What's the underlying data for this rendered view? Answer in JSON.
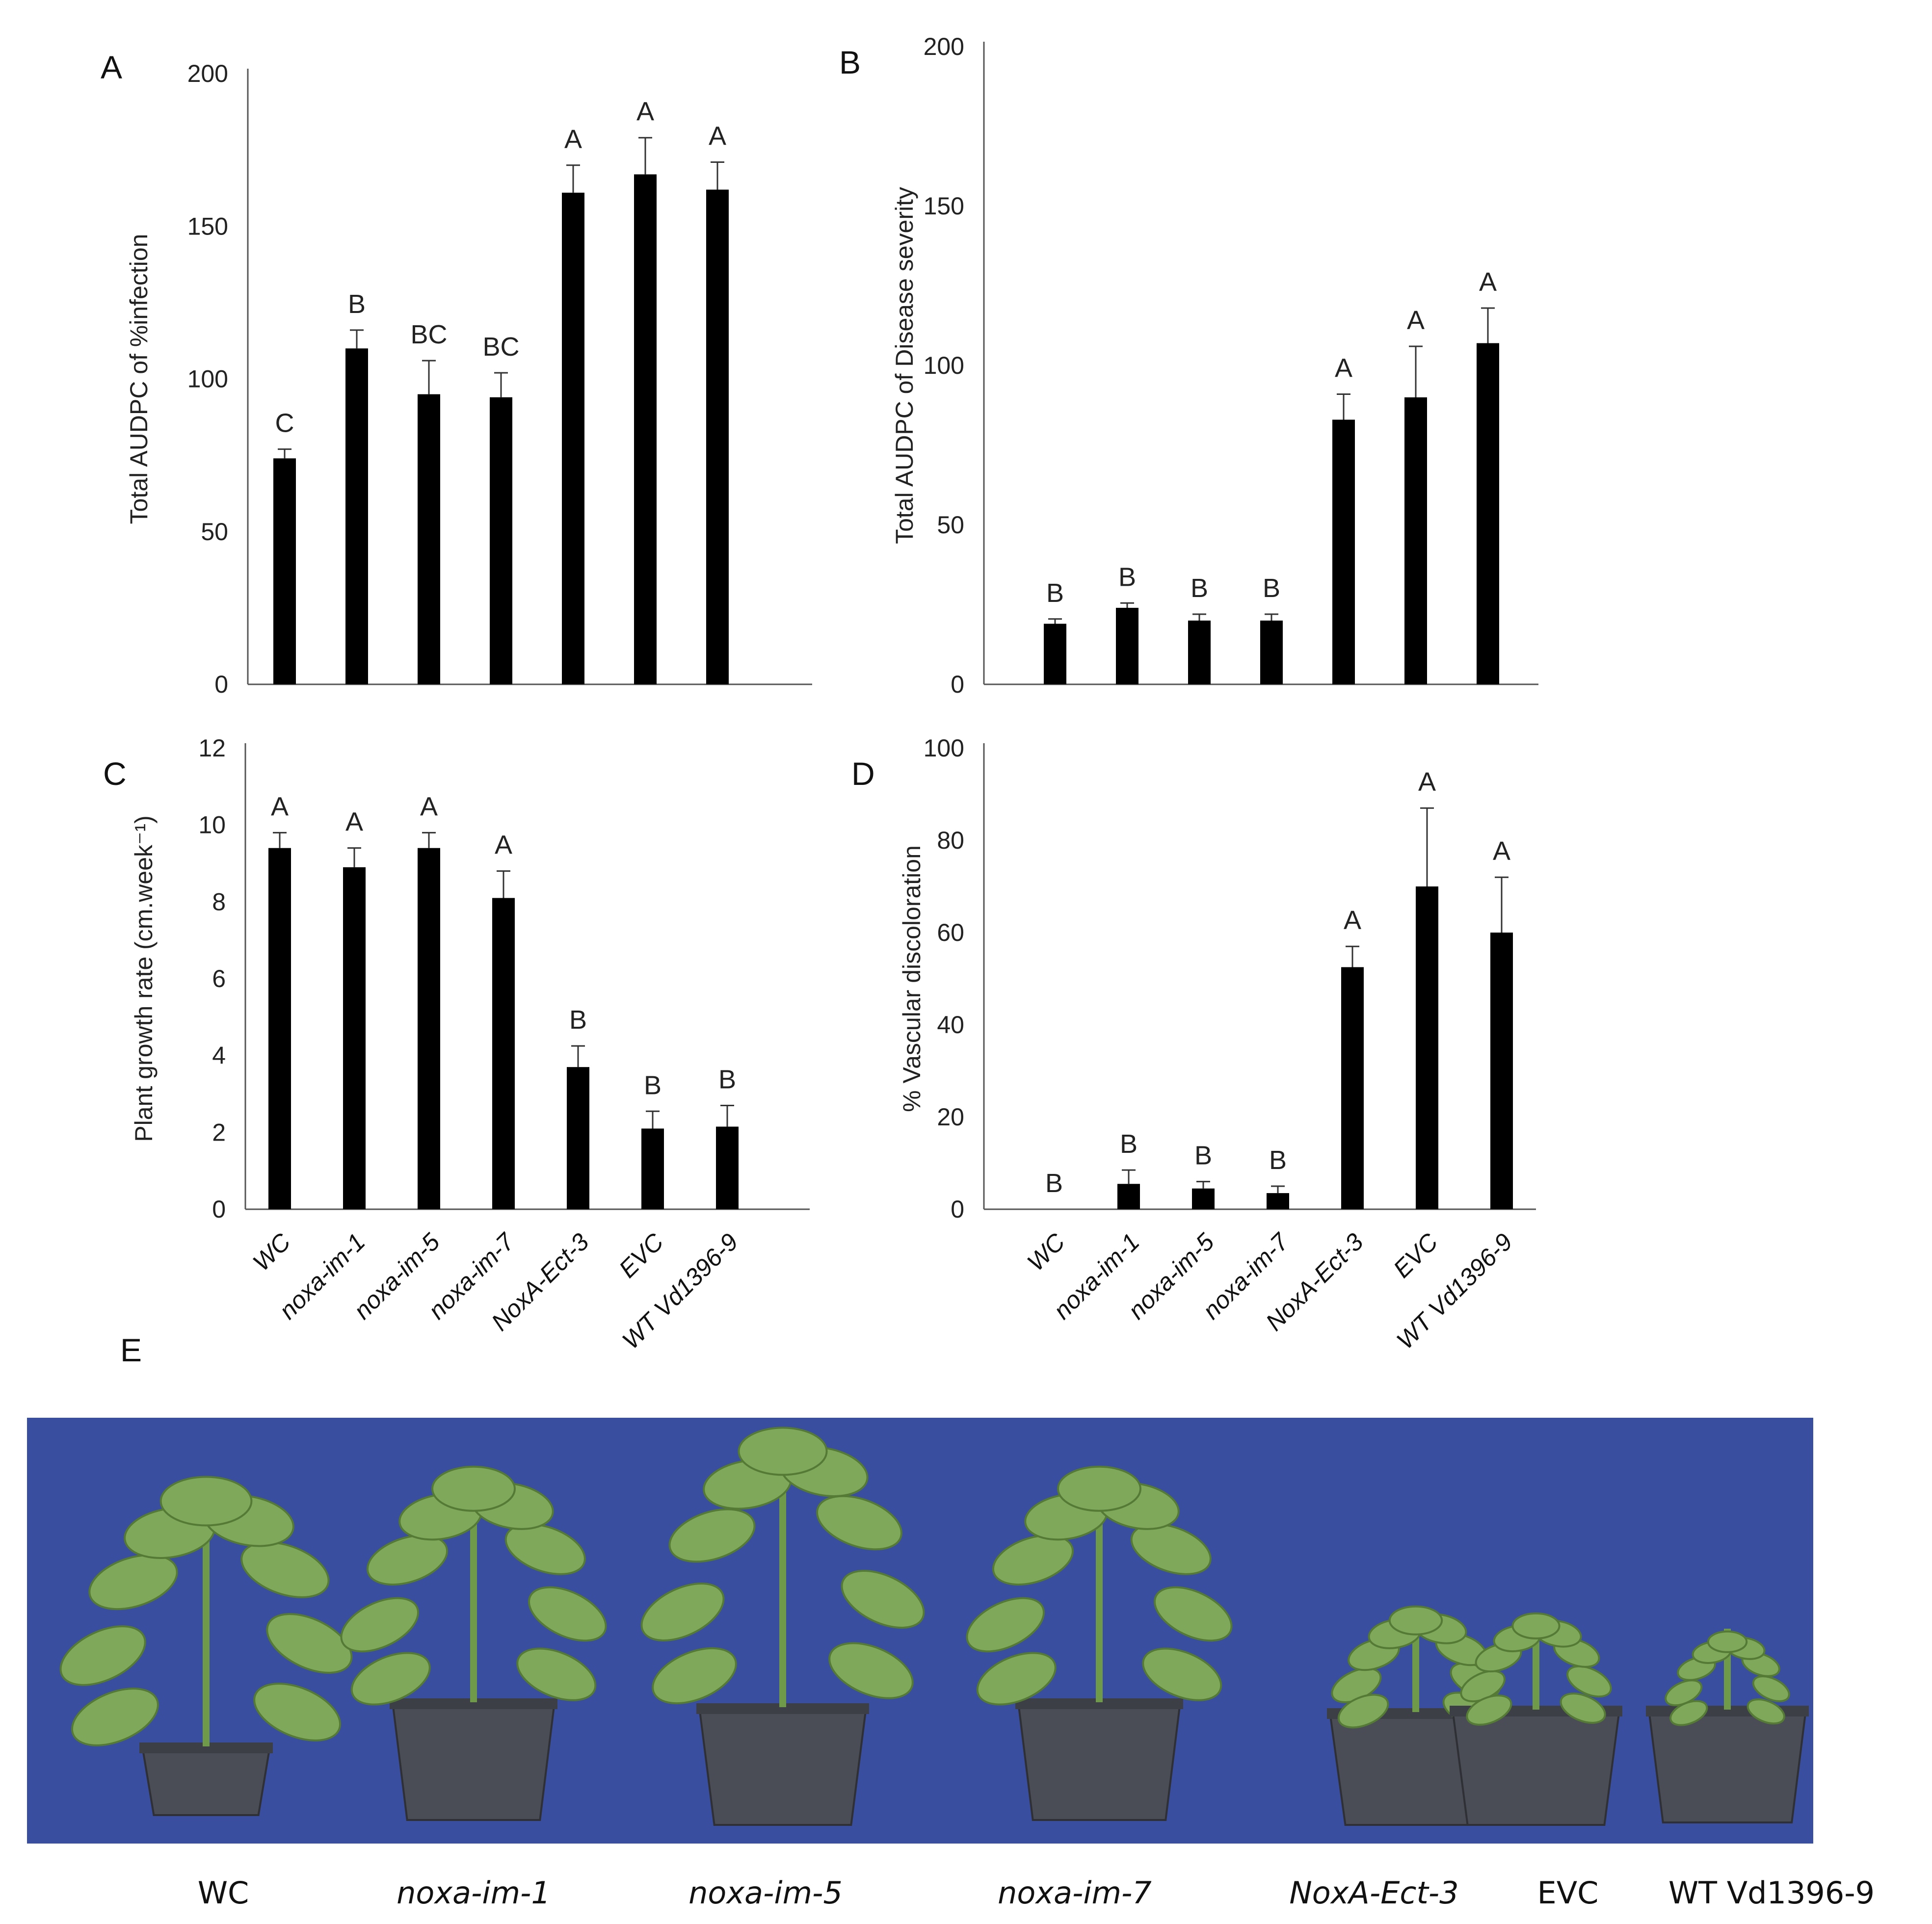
{
  "panel_labels": {
    "A": "A",
    "B": "B",
    "C": "C",
    "D": "D",
    "E": "E"
  },
  "categories": [
    "WC",
    "noxa-im-1",
    "noxa-im-5",
    "noxa-im-7",
    "NoxA-Ect-3",
    "EVC",
    "WT Vd1396-9"
  ],
  "chart_data": [
    {
      "id": "A",
      "type": "bar",
      "ylabel": "Total  AUDPC of %infection",
      "ylim": [
        0,
        200
      ],
      "yticks": [
        0,
        50,
        100,
        150,
        200
      ],
      "values": [
        74,
        110,
        95,
        94,
        161,
        167,
        162
      ],
      "errors": [
        3,
        6,
        11,
        8,
        9,
        12,
        9
      ],
      "letters": [
        "C",
        "B",
        "BC",
        "BC",
        "A",
        "A",
        "A"
      ],
      "show_x_labels": false,
      "color": "#000000"
    },
    {
      "id": "B",
      "type": "bar",
      "ylabel": "Total AUDPC of Disease severity",
      "ylim": [
        0,
        200
      ],
      "yticks": [
        0,
        50,
        100,
        150,
        200
      ],
      "values": [
        19,
        24,
        20,
        20,
        83,
        90,
        107
      ],
      "errors": [
        1.5,
        1.5,
        2,
        2,
        8,
        16,
        11
      ],
      "letters": [
        "B",
        "B",
        "B",
        "B",
        "A",
        "A",
        "A"
      ],
      "show_x_labels": false,
      "color": "#000000"
    },
    {
      "id": "C",
      "type": "bar",
      "ylabel": "Plant growth rate  (cm.week⁻¹)",
      "ylim": [
        0,
        12
      ],
      "yticks": [
        0,
        2,
        4,
        6,
        8,
        10,
        12
      ],
      "values": [
        9.4,
        8.9,
        9.4,
        8.1,
        3.7,
        2.1,
        2.15
      ],
      "errors": [
        0.4,
        0.5,
        0.4,
        0.7,
        0.55,
        0.45,
        0.55
      ],
      "letters": [
        "A",
        "A",
        "A",
        "A",
        "B",
        "B",
        "B"
      ],
      "show_x_labels": true,
      "color": "#000000"
    },
    {
      "id": "D",
      "type": "bar",
      "ylabel": "% Vascular discoloration",
      "ylim": [
        0,
        100
      ],
      "yticks": [
        0,
        20,
        40,
        60,
        80,
        100
      ],
      "values": [
        0,
        5.5,
        4.5,
        3.5,
        52.5,
        70,
        60
      ],
      "errors": [
        0,
        3,
        1.5,
        1.5,
        4.5,
        17,
        12
      ],
      "letters": [
        "B",
        "B",
        "B",
        "B",
        "A",
        "A",
        "A"
      ],
      "show_x_labels": true,
      "color": "#000000"
    }
  ],
  "photo": {
    "background": "#3a4ea0",
    "captions": [
      "WC",
      "noxa-im-1",
      "noxa-im-5",
      "noxa-im-7",
      "NoxA-Ect-3",
      "EVC",
      "WT Vd1396-9"
    ]
  }
}
